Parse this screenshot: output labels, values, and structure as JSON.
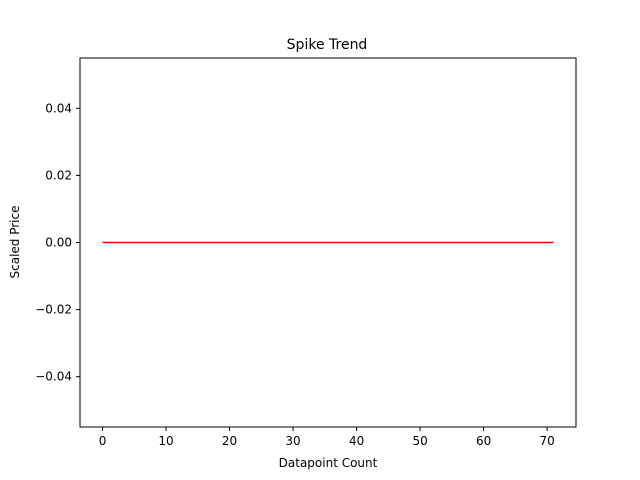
{
  "chart_data": {
    "type": "line",
    "title": "Spike Trend",
    "xlabel": "Datapoint Count",
    "ylabel": "Scaled Price",
    "xlim": [
      -3.55,
      74.55
    ],
    "ylim": [
      -0.055,
      0.055
    ],
    "x_ticks": [
      0,
      10,
      20,
      30,
      40,
      50,
      60,
      70
    ],
    "x_tick_labels": [
      "0",
      "10",
      "20",
      "30",
      "40",
      "50",
      "60",
      "70"
    ],
    "y_ticks": [
      -0.04,
      -0.02,
      0.0,
      0.02,
      0.04
    ],
    "y_tick_labels": [
      "−0.04",
      "−0.02",
      "0.00",
      "0.02",
      "0.04"
    ],
    "grid": false,
    "legend": "none",
    "series": [
      {
        "color": "#ff0000",
        "x": [
          0,
          71
        ],
        "y": [
          0.0,
          0.0
        ]
      }
    ]
  }
}
